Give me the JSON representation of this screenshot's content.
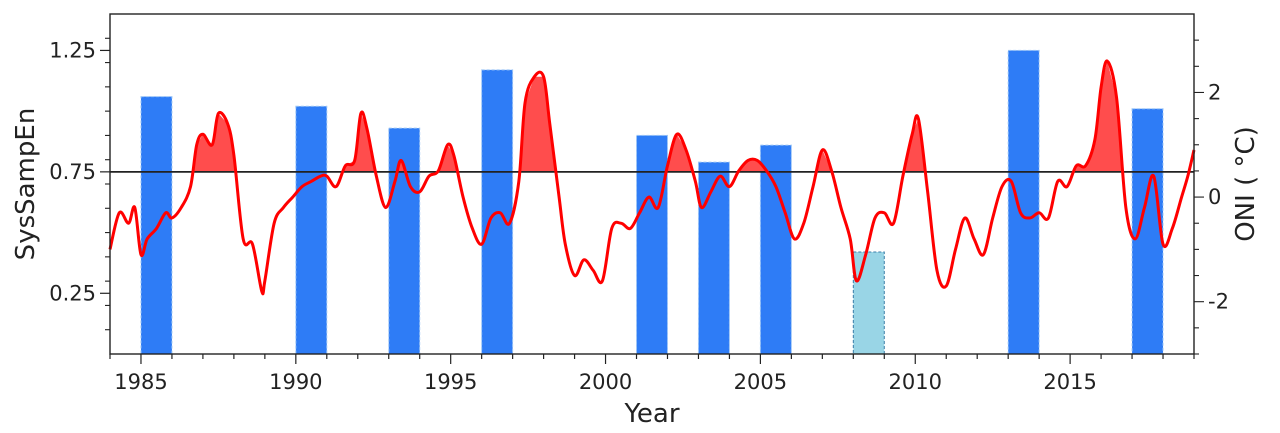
{
  "chart_data": {
    "type": "bar",
    "title": "",
    "xlabel": "Year",
    "ylabel": "SysSampEn",
    "y2label": "ONI ( °C)",
    "xlim": [
      1984,
      2019
    ],
    "ylim": [
      0.0,
      1.4
    ],
    "y2lim": [
      -3.0,
      3.5
    ],
    "threshold": 0.75,
    "xticks": [
      1985,
      1990,
      1995,
      2000,
      2005,
      2010,
      2015
    ],
    "yticks": [
      0.25,
      0.75,
      1.25
    ],
    "y2ticks": [
      -2,
      0,
      2
    ],
    "grid": false,
    "colors": {
      "bar": "#2e7cf6",
      "bar_highlight": "#99d5e6",
      "oni_line": "#ff0000",
      "el_nino_fill": "#ff4d4d",
      "threshold_line": "#222222",
      "axis_right": "#ff0000"
    },
    "bars": [
      {
        "start": 1985,
        "end": 1986,
        "value": 1.06
      },
      {
        "start": 1990,
        "end": 1991,
        "value": 1.02
      },
      {
        "start": 1993,
        "end": 1994,
        "value": 0.93
      },
      {
        "start": 1996,
        "end": 1997,
        "value": 1.17
      },
      {
        "start": 2001,
        "end": 2002,
        "value": 0.9
      },
      {
        "start": 2003,
        "end": 2004,
        "value": 0.79
      },
      {
        "start": 2005,
        "end": 2006,
        "value": 0.86
      },
      {
        "start": 2008,
        "end": 2009,
        "value": 0.42,
        "highlight": true
      },
      {
        "start": 2013,
        "end": 2014,
        "value": 1.25
      },
      {
        "start": 2017,
        "end": 2018,
        "value": 1.01
      }
    ],
    "oni_series": {
      "x": [
        1984.0,
        1984.3,
        1984.6,
        1984.8,
        1985.0,
        1985.2,
        1985.5,
        1985.8,
        1986.0,
        1986.3,
        1986.6,
        1986.8,
        1987.0,
        1987.3,
        1987.5,
        1987.8,
        1988.0,
        1988.3,
        1988.6,
        1988.9,
        1989.0,
        1989.3,
        1989.6,
        1989.9,
        1990.2,
        1990.5,
        1990.8,
        1991.0,
        1991.3,
        1991.6,
        1991.9,
        1992.1,
        1992.3,
        1992.6,
        1992.9,
        1993.2,
        1993.4,
        1993.7,
        1994.0,
        1994.3,
        1994.6,
        1994.9,
        1995.1,
        1995.4,
        1995.7,
        1996.0,
        1996.3,
        1996.6,
        1996.9,
        1997.2,
        1997.4,
        1997.7,
        1998.0,
        1998.2,
        1998.5,
        1998.7,
        1999.0,
        1999.3,
        1999.6,
        1999.9,
        2000.2,
        2000.5,
        2000.8,
        2001.1,
        2001.4,
        2001.7,
        2002.0,
        2002.3,
        2002.6,
        2002.9,
        2003.1,
        2003.4,
        2003.7,
        2004.0,
        2004.3,
        2004.6,
        2004.9,
        2005.2,
        2005.5,
        2005.8,
        2006.1,
        2006.4,
        2006.7,
        2007.0,
        2007.3,
        2007.6,
        2007.9,
        2008.1,
        2008.4,
        2008.7,
        2009.0,
        2009.3,
        2009.6,
        2009.9,
        2010.1,
        2010.4,
        2010.7,
        2011.0,
        2011.3,
        2011.6,
        2011.9,
        2012.2,
        2012.5,
        2012.8,
        2013.1,
        2013.4,
        2013.7,
        2014.0,
        2014.3,
        2014.6,
        2014.9,
        2015.2,
        2015.5,
        2015.8,
        2016.0,
        2016.2,
        2016.5,
        2016.8,
        2017.1,
        2017.4,
        2017.7,
        2018.0,
        2018.3,
        2018.6,
        2018.8,
        2019.0
      ],
      "y": [
        -1.0,
        -0.3,
        -0.5,
        -0.2,
        -1.1,
        -0.8,
        -0.6,
        -0.3,
        -0.4,
        -0.2,
        0.2,
        1.0,
        1.2,
        1.0,
        1.6,
        1.4,
        0.8,
        -0.8,
        -0.9,
        -1.8,
        -1.6,
        -0.5,
        -0.2,
        0.0,
        0.2,
        0.3,
        0.4,
        0.4,
        0.2,
        0.6,
        0.7,
        1.6,
        1.3,
        0.4,
        -0.2,
        0.3,
        0.7,
        0.2,
        0.1,
        0.4,
        0.5,
        1.0,
        0.8,
        0.0,
        -0.6,
        -0.9,
        -0.4,
        -0.3,
        -0.5,
        0.3,
        1.8,
        2.3,
        2.3,
        1.4,
        0.0,
        -0.9,
        -1.5,
        -1.2,
        -1.4,
        -1.6,
        -0.6,
        -0.5,
        -0.6,
        -0.3,
        0.0,
        -0.2,
        0.6,
        1.2,
        0.9,
        0.3,
        -0.2,
        0.1,
        0.4,
        0.2,
        0.5,
        0.7,
        0.7,
        0.5,
        0.2,
        -0.3,
        -0.8,
        -0.5,
        0.2,
        0.9,
        0.5,
        -0.2,
        -0.8,
        -1.6,
        -1.1,
        -0.4,
        -0.3,
        -0.5,
        0.4,
        1.2,
        1.5,
        0.1,
        -1.4,
        -1.7,
        -1.0,
        -0.4,
        -0.8,
        -1.1,
        -0.4,
        0.2,
        0.3,
        -0.3,
        -0.4,
        -0.3,
        -0.4,
        0.3,
        0.2,
        0.6,
        0.6,
        1.1,
        2.1,
        2.6,
        1.9,
        -0.2,
        -0.8,
        -0.2,
        0.4,
        -0.9,
        -0.6,
        0.0,
        0.4,
        0.9
      ]
    }
  }
}
